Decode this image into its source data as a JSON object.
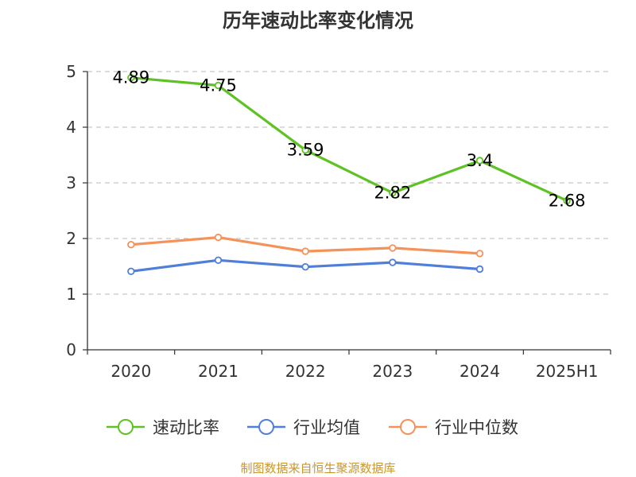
{
  "title": "历年速动比率变化情况",
  "source": "制图数据来自恒生聚源数据库",
  "chart_data": {
    "type": "line",
    "title": "历年速动比率变化情况",
    "xlabel": "",
    "ylabel": "",
    "categories": [
      "2020",
      "2021",
      "2022",
      "2023",
      "2024",
      "2025H1"
    ],
    "ylim": [
      0,
      5
    ],
    "yticks": [
      "0",
      "1",
      "2",
      "3",
      "4",
      "5"
    ],
    "grid": "horizontal dashed",
    "legend_position": "bottom",
    "series": [
      {
        "name": "速动比率",
        "color": "#5ec224",
        "values": [
          4.89,
          4.75,
          3.59,
          2.82,
          3.4,
          2.68
        ],
        "data_labels": [
          "4.89",
          "4.75",
          "3.59",
          "2.82",
          "3.4",
          "2.68"
        ]
      },
      {
        "name": "行业均值",
        "color": "#4f7fd8",
        "values": [
          1.41,
          1.61,
          1.49,
          1.57,
          1.45,
          null
        ]
      },
      {
        "name": "行业中位数",
        "color": "#f5925a",
        "values": [
          1.89,
          2.02,
          1.77,
          1.83,
          1.73,
          null
        ]
      }
    ]
  }
}
